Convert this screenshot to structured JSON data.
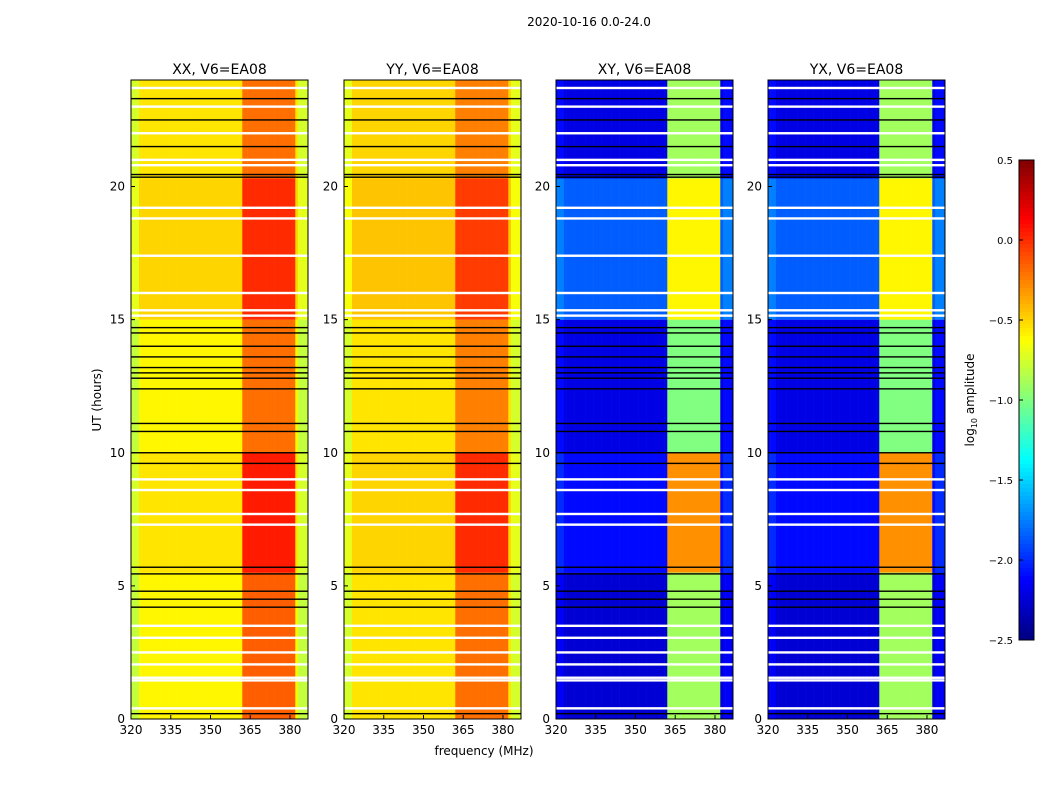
{
  "chart_data": {
    "type": "heatmap",
    "suptitle": "2020-10-16 0.0-24.0",
    "xlabel": "frequency (MHz)",
    "ylabel": "UT (hours)",
    "xlim": [
      320,
      386.8
    ],
    "ylim": [
      0,
      24
    ],
    "xticks": [
      320,
      335,
      350,
      365,
      380
    ],
    "yticks": [
      0,
      5,
      10,
      15,
      20
    ],
    "colorbar": {
      "label_main": "log",
      "label_sub": "10",
      "label_rest": " amplitude",
      "range": [
        -2.5,
        0.5
      ],
      "ticks": [
        "0.5",
        "0.0",
        "−0.5",
        "−1.0",
        "−1.5",
        "−2.0",
        "−2.5"
      ],
      "tick_values": [
        0.5,
        0.0,
        -0.5,
        -1.0,
        -1.5,
        -2.0,
        -2.5
      ],
      "colormap": "jet"
    },
    "rfi_bands_mhz": [
      [
        362.5,
        366.5
      ],
      [
        367.5,
        371.5
      ],
      [
        372.5,
        376.5
      ],
      [
        377.5,
        381.5
      ]
    ],
    "time_segments": [
      [
        0,
        5.5
      ],
      [
        5.5,
        10
      ],
      [
        10,
        15
      ],
      [
        15,
        20.3
      ],
      [
        20.3,
        24
      ]
    ],
    "flagged_white_hours": [
      0.4,
      1.45,
      1.55,
      2.05,
      2.5,
      3.05,
      3.5,
      7.3,
      7.7,
      8.6,
      9.0,
      15.15,
      15.35,
      16.0,
      17.4,
      18.8,
      19.2,
      20.8,
      21.0,
      22.0,
      23.0,
      23.7
    ],
    "flagged_black_hours": [
      0.2,
      4.2,
      4.5,
      4.8,
      5.45,
      5.7,
      9.6,
      10.0,
      10.8,
      11.1,
      12.4,
      12.8,
      13.0,
      13.2,
      13.6,
      14.0,
      14.5,
      14.7,
      20.35,
      20.45,
      21.5,
      22.5,
      23.3
    ],
    "panels": [
      {
        "title": "XX, V6=EA08",
        "base": [
          -0.6,
          -0.55,
          -0.6,
          -0.5,
          -0.55
        ],
        "band": [
          -0.15,
          0.05,
          -0.2,
          0.0,
          -0.2
        ]
      },
      {
        "title": "YY, V6=EA08",
        "base": [
          -0.55,
          -0.5,
          -0.55,
          -0.45,
          -0.5
        ],
        "band": [
          -0.2,
          0.0,
          -0.25,
          -0.05,
          -0.25
        ]
      },
      {
        "title": "XY, V6=EA08",
        "base": [
          -2.25,
          -2.1,
          -2.2,
          -1.85,
          -2.2
        ],
        "band": [
          -0.9,
          -0.3,
          -1.0,
          -0.6,
          -0.9
        ]
      },
      {
        "title": "YX, V6=EA08",
        "base": [
          -2.25,
          -2.1,
          -2.2,
          -1.85,
          -2.2
        ],
        "band": [
          -0.9,
          -0.3,
          -1.0,
          -0.6,
          -0.9
        ]
      }
    ]
  }
}
